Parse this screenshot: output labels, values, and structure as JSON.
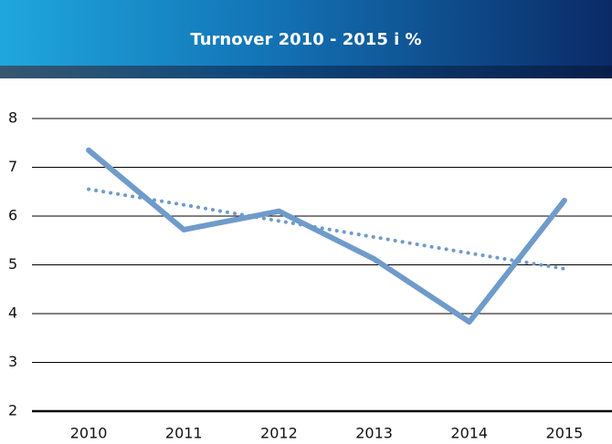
{
  "chart_data": {
    "type": "line",
    "title": "Turnover 2010 - 2015 i %",
    "categories": [
      "2010",
      "2011",
      "2012",
      "2013",
      "2014",
      "2015"
    ],
    "series": [
      {
        "color": "#6f9bcb",
        "values": [
          7.35,
          5.72,
          6.1,
          5.12,
          3.83,
          6.32
        ]
      },
      {
        "color": "#6f9bcb",
        "style": "dotted",
        "values": [
          6.55,
          6.23,
          5.9,
          5.57,
          5.24,
          4.92
        ]
      }
    ],
    "ylim": [
      2,
      8
    ],
    "yticks": [
      2,
      3,
      4,
      5,
      6,
      7,
      8
    ],
    "grid": true
  }
}
